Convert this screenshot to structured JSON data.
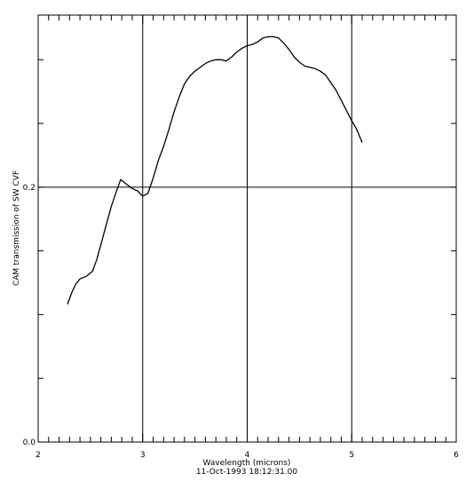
{
  "chart_data": {
    "type": "line",
    "title": "",
    "xlabel": "Wavelength (microns)",
    "timestamp": "11-Oct-1993 18:12:31.00",
    "ylabel": "CAM transmission of SW CVF",
    "xlim": [
      2,
      6
    ],
    "ylim": [
      0.0,
      0.335
    ],
    "x_tick_labels": [
      "2",
      "3",
      "4",
      "5",
      "6"
    ],
    "y_tick_labels": [
      "0.0",
      "0.2"
    ],
    "grid": "vertical lines at x = 3, 4, 5; horizontal line at y = 0.2",
    "series": [
      {
        "x": [
          2.28,
          2.32,
          2.36,
          2.4,
          2.46,
          2.52,
          2.56,
          2.6,
          2.65,
          2.7,
          2.75,
          2.79,
          2.85,
          2.9,
          2.95,
          3.0,
          3.05,
          3.1,
          3.15,
          3.2,
          3.25,
          3.3,
          3.35,
          3.4,
          3.45,
          3.5,
          3.55,
          3.6,
          3.65,
          3.7,
          3.75,
          3.8,
          3.85,
          3.9,
          3.95,
          4.0,
          4.05,
          4.1,
          4.15,
          4.2,
          4.25,
          4.3,
          4.35,
          4.4,
          4.45,
          4.5,
          4.55,
          4.6,
          4.65,
          4.7,
          4.75,
          4.8,
          4.85,
          4.9,
          4.95,
          5.0,
          5.05,
          5.1
        ],
        "y": [
          0.108,
          0.117,
          0.124,
          0.128,
          0.13,
          0.134,
          0.143,
          0.155,
          0.17,
          0.185,
          0.197,
          0.206,
          0.202,
          0.199,
          0.197,
          0.193,
          0.195,
          0.207,
          0.221,
          0.232,
          0.245,
          0.259,
          0.271,
          0.281,
          0.287,
          0.291,
          0.294,
          0.297,
          0.299,
          0.3,
          0.3,
          0.299,
          0.302,
          0.306,
          0.309,
          0.311,
          0.312,
          0.314,
          0.317,
          0.318,
          0.318,
          0.317,
          0.313,
          0.308,
          0.302,
          0.298,
          0.295,
          0.294,
          0.293,
          0.291,
          0.288,
          0.282,
          0.276,
          0.268,
          0.26,
          0.252,
          0.245,
          0.235
        ]
      }
    ]
  }
}
